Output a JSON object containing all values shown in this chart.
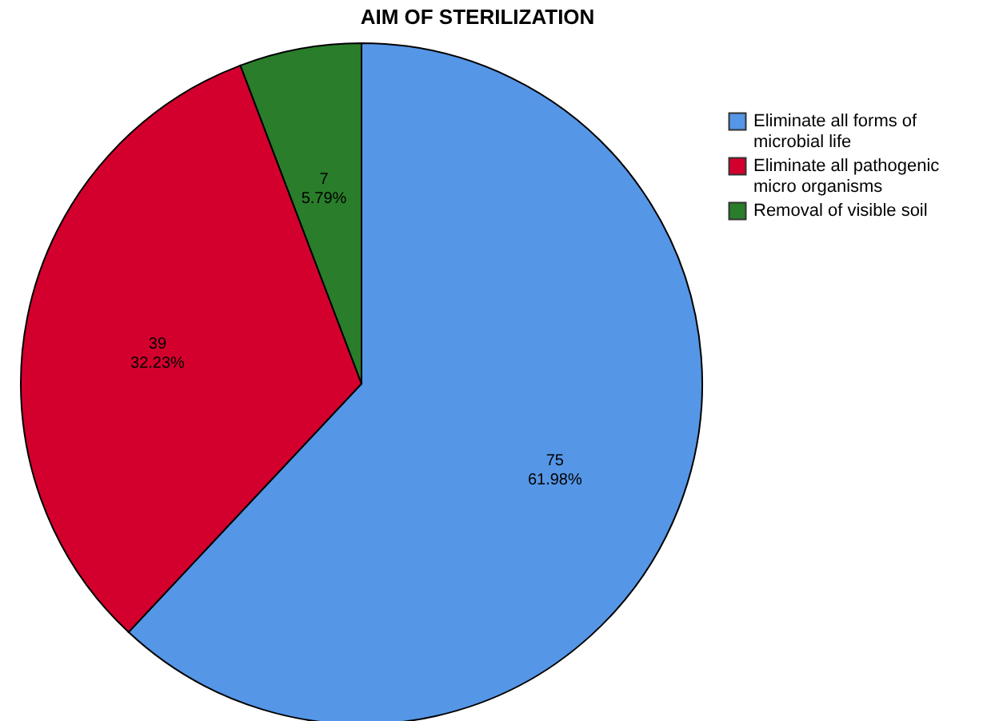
{
  "chart_data": {
    "type": "pie",
    "title": "AIM OF STERILIZATION",
    "categories": [
      "Eliminate all forms of microbial life",
      "Eliminate all pathogenic micro organisms",
      "Removal of visible soil"
    ],
    "values": [
      75,
      39,
      7
    ],
    "colors": [
      "#5596e6",
      "#d3002e",
      "#2a7d2a"
    ],
    "value_labels": [
      "75\n61.98%",
      "39\n32.23%",
      "7\n5.79%"
    ],
    "legend": "top right"
  }
}
